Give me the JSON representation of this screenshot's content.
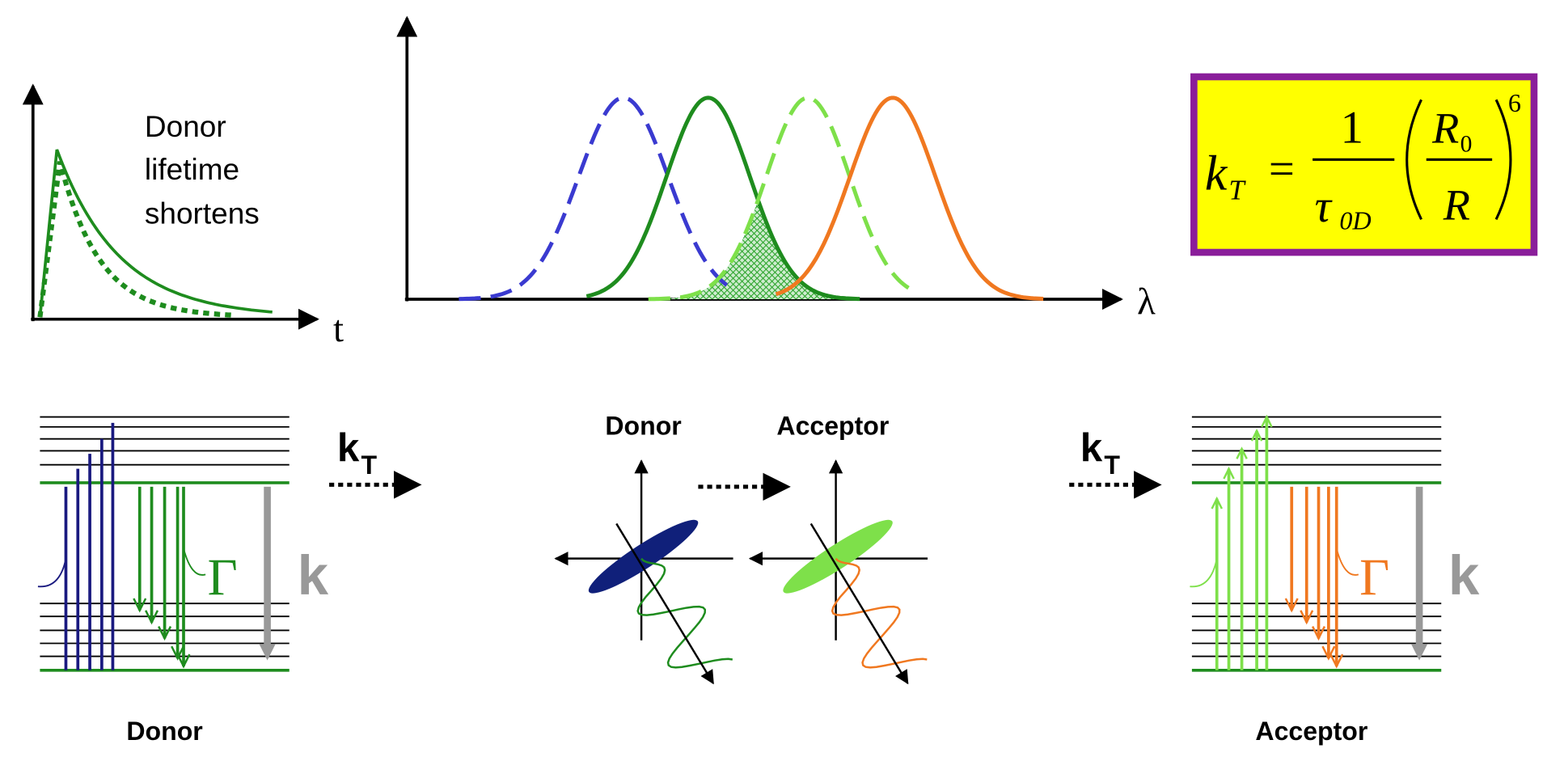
{
  "lifetime_plot": {
    "label": [
      "Donor",
      "lifetime",
      "shortens"
    ],
    "x_axis": "t"
  },
  "spectra_plot": {
    "x_axis": "λ"
  },
  "formula": {
    "k": "k",
    "k_sub": "T",
    "equals": "=",
    "numerator": "1",
    "tau": "τ",
    "tau_sub": "0D",
    "r0": "R",
    "r0_sub": "0",
    "r": "R",
    "exponent": "6"
  },
  "transfer_arrows": [
    {
      "k": "k",
      "sub": "T"
    },
    {
      "k": "k",
      "sub": "T"
    }
  ],
  "donor_levels": {
    "gamma": "Γ",
    "k": "k",
    "label": "Donor"
  },
  "acceptor_levels": {
    "gamma": "Γ",
    "k": "k",
    "label": "Acceptor"
  },
  "dipoles": {
    "donor": "Donor",
    "acceptor": "Acceptor"
  }
}
